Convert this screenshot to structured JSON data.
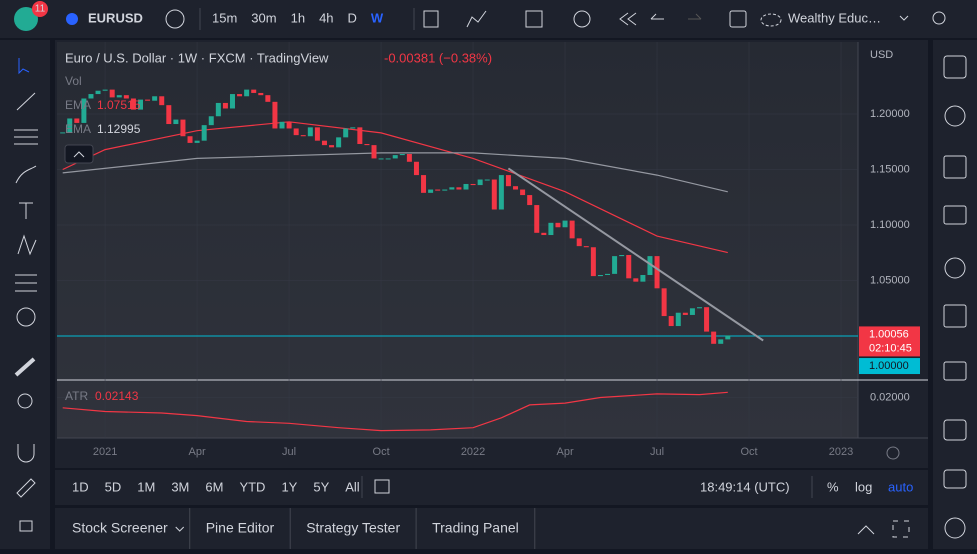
{
  "ui": {
    "badge": "11",
    "symbol": "EURUSD",
    "intervals": [
      "15m",
      "30m",
      "1h",
      "4h",
      "D",
      "W"
    ],
    "layout_name": "Wealthy Educ…",
    "ranges": [
      "1D",
      "5D",
      "1M",
      "3M",
      "6M",
      "YTD",
      "1Y",
      "5Y",
      "All"
    ],
    "clock": "18:49:14 (UTC)",
    "scale_options": [
      "%",
      "log",
      "auto"
    ],
    "tabs": [
      "Stock Screener",
      "Pine Editor",
      "Strategy Tester",
      "Trading Panel"
    ]
  },
  "chart_data": {
    "type": "candlestick",
    "title": "Euro / U.S. Dollar · 1W · FXCM · TradingView",
    "change": "-0.00381 (−0.38%)",
    "currency": "USD",
    "volume_label": "Vol",
    "countdown": "02:10:45",
    "x": [
      -6,
      -5,
      -4,
      -3,
      -2,
      -1,
      0,
      1,
      2,
      3,
      4,
      5,
      6,
      7,
      8,
      9,
      10,
      11,
      12,
      13,
      14,
      15,
      16,
      17,
      18,
      19,
      20,
      21,
      22,
      23,
      24,
      25,
      26,
      27,
      28,
      29,
      30,
      31,
      32,
      33,
      34,
      35,
      36,
      37,
      38,
      39,
      40,
      41,
      42,
      43,
      44,
      45,
      46,
      47,
      48,
      49,
      50,
      51,
      52,
      53,
      54,
      55,
      56,
      57,
      58,
      59,
      60,
      61,
      62,
      63,
      64,
      65,
      66,
      67,
      68,
      69,
      70,
      71,
      72,
      73,
      74,
      75,
      76,
      77,
      78,
      79,
      80,
      81,
      82,
      83,
      84,
      85,
      86,
      87,
      88
    ],
    "close": [
      1.183,
      1.196,
      1.192,
      1.214,
      1.218,
      1.221,
      1.222,
      1.215,
      1.217,
      1.214,
      1.204,
      1.213,
      1.212,
      1.216,
      1.208,
      1.191,
      1.195,
      1.18,
      1.174,
      1.176,
      1.19,
      1.198,
      1.21,
      1.205,
      1.218,
      1.216,
      1.222,
      1.219,
      1.217,
      1.211,
      1.187,
      1.193,
      1.187,
      1.181,
      1.18,
      1.188,
      1.176,
      1.172,
      1.17,
      1.179,
      1.187,
      1.188,
      1.173,
      1.172,
      1.16,
      1.16,
      1.16,
      1.163,
      1.164,
      1.157,
      1.145,
      1.129,
      1.132,
      1.131,
      1.132,
      1.134,
      1.132,
      1.137,
      1.136,
      1.141,
      1.141,
      1.114,
      1.145,
      1.135,
      1.132,
      1.127,
      1.118,
      1.093,
      1.091,
      1.102,
      1.098,
      1.104,
      1.088,
      1.081,
      1.08,
      1.054,
      1.055,
      1.056,
      1.072,
      1.073,
      1.052,
      1.049,
      1.055,
      1.072,
      1.043,
      1.018,
      1.009,
      1.021,
      1.019,
      1.025,
      1.026,
      1.004,
      0.993,
      0.997,
      1.00056
    ],
    "up_color": "#22ab94",
    "down_color": "#f23645",
    "xlim": [
      -6.8,
      106.4
    ],
    "xticks": [
      {
        "value": 0,
        "label": "2021"
      },
      {
        "value": 13,
        "label": "Apr"
      },
      {
        "value": 26,
        "label": "Jul"
      },
      {
        "value": 39,
        "label": "Oct"
      },
      {
        "value": 52,
        "label": "2022"
      },
      {
        "value": 65,
        "label": "Apr"
      },
      {
        "value": 78,
        "label": "Jul"
      },
      {
        "value": 91,
        "label": "Oct"
      },
      {
        "value": 104,
        "label": "2023"
      }
    ],
    "ylim": [
      0.9613,
      1.2649
    ],
    "yticks": [
      {
        "value": 1.05,
        "label": "1.05000"
      },
      {
        "value": 1.1,
        "label": "1.10000"
      },
      {
        "value": 1.15,
        "label": "1.15000"
      },
      {
        "value": 1.2,
        "label": "1.20000"
      }
    ],
    "grid": true,
    "price_line": {
      "value": 1,
      "label": "1.00000",
      "color": "#00bcd4"
    },
    "series": [
      {
        "name": "EMA",
        "color": "#f23645",
        "x": [
          -6,
          0,
          13,
          26,
          39,
          52,
          65,
          78,
          88
        ],
        "values": [
          1.15,
          1.168,
          1.185,
          1.193,
          1.183,
          1.16,
          1.13,
          1.09,
          1.07515
        ]
      },
      {
        "name": "EMA",
        "color": "#9598a1",
        "x": [
          -6,
          13,
          39,
          52,
          65,
          78,
          88
        ],
        "values": [
          1.147,
          1.16,
          1.165,
          1.165,
          1.16,
          1.145,
          1.12995
        ]
      }
    ],
    "trendline": {
      "x": [
        57,
        93
      ],
      "values": [
        1.151,
        0.996
      ],
      "color": "#9598a1"
    },
    "indicator": {
      "name": "ATR",
      "color": "#f23645",
      "x": [
        -6,
        0,
        8,
        13,
        20,
        26,
        33,
        39,
        46,
        52,
        56,
        60,
        65,
        70,
        78,
        84,
        88
      ],
      "values": [
        0.0172,
        0.0162,
        0.0158,
        0.0151,
        0.0135,
        0.013,
        0.0118,
        0.011,
        0.0112,
        0.0118,
        0.0145,
        0.018,
        0.0185,
        0.02,
        0.021,
        0.0208,
        0.02143
      ],
      "ylim": [
        0.009,
        0.0245
      ],
      "yticks": [
        {
          "value": 0.02,
          "label": "0.02000"
        }
      ]
    }
  }
}
